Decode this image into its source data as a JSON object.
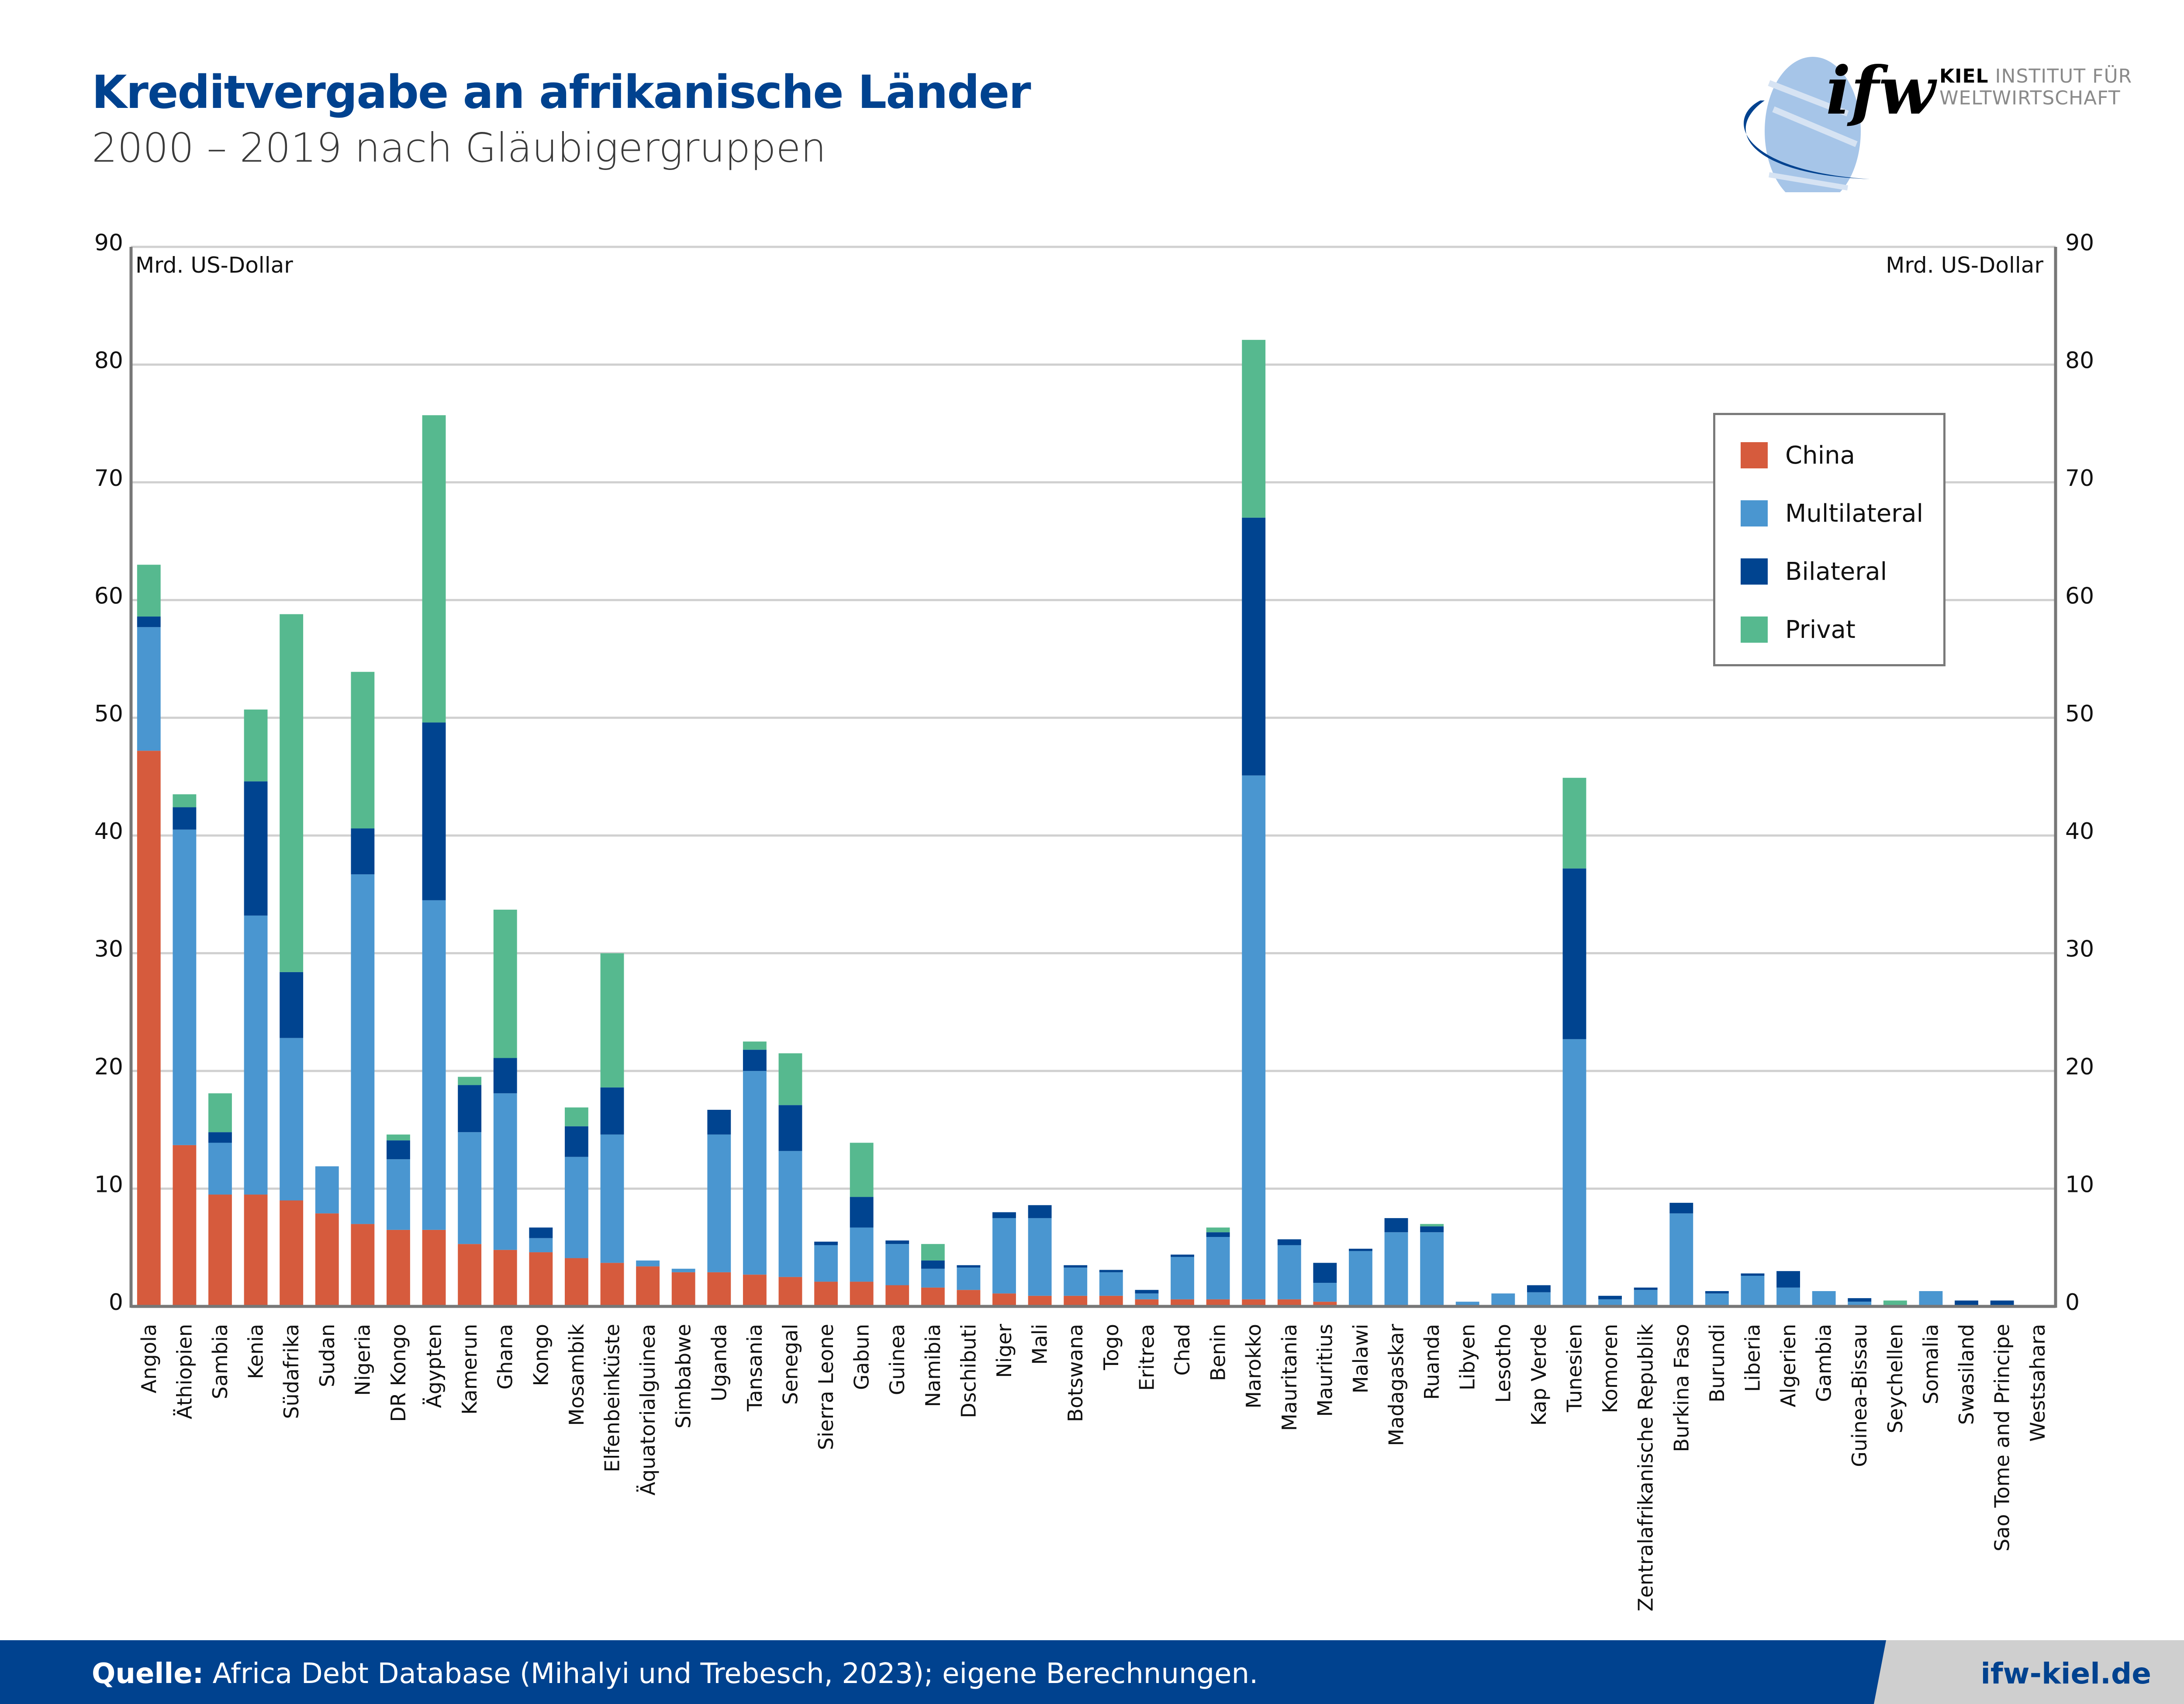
{
  "header": {
    "title": "Kreditvergabe an afrikanische Länder",
    "subtitle": "2000 – 2019 nach Gläubigergruppen"
  },
  "logo": {
    "mark": "ifw",
    "line1_bold": "KIEL",
    "line1_rest": " INSTITUT FÜR",
    "line2": "WELTWIRTSCHAFT"
  },
  "footer": {
    "source_label": "Quelle:",
    "source_text": " Africa Debt Database (Mihalyi und Trebesch, 2023); eigene Berechnungen.",
    "url": "ifw-kiel.de"
  },
  "colors": {
    "China": "#d65b3d",
    "Multilateral": "#4a96d0",
    "Bilateral": "#004490",
    "Privat": "#56b98f",
    "brand": "#00428f"
  },
  "chart_data": {
    "type": "bar",
    "stacked": true,
    "title": "Kreditvergabe an afrikanische Länder",
    "subtitle": "2000 – 2019 nach Gläubigergruppen",
    "ylabel": "Mrd. US-Dollar",
    "ylabel_right": "Mrd. US-Dollar",
    "ylim": [
      0,
      90
    ],
    "yticks": [
      0,
      10,
      20,
      30,
      40,
      50,
      60,
      70,
      80,
      90
    ],
    "grid": true,
    "legend_position": "top-right",
    "categories": [
      "Angola",
      "Äthiopien",
      "Sambia",
      "Kenia",
      "Südafrika",
      "Sudan",
      "Nigeria",
      "DR Kongo",
      "Ägypten",
      "Kamerun",
      "Ghana",
      "Kongo",
      "Mosambik",
      "Elfenbeinküste",
      "Äquatorialguinea",
      "Simbabwe",
      "Uganda",
      "Tansania",
      "Senegal",
      "Sierra Leone",
      "Gabun",
      "Guinea",
      "Namibia",
      "Dschibuti",
      "Niger",
      "Mali",
      "Botswana",
      "Togo",
      "Eritrea",
      "Chad",
      "Benin",
      "Marokko",
      "Mauritania",
      "Mauritius",
      "Malawi",
      "Madagaskar",
      "Ruanda",
      "Libyen",
      "Lesotho",
      "Kap Verde",
      "Tunesien",
      "Komoren",
      "Zentralafrikanische Republik",
      "Burkina Faso",
      "Burundi",
      "Liberia",
      "Algerien",
      "Gambia",
      "Guinea-Bissau",
      "Seychellen",
      "Somalia",
      "Swasiland",
      "Sao Tome and Principe",
      "Westsahara"
    ],
    "series": [
      {
        "name": "China",
        "values": [
          47.2,
          13.7,
          9.5,
          9.5,
          9.0,
          7.9,
          7.0,
          6.5,
          6.5,
          5.3,
          4.8,
          4.6,
          4.1,
          3.7,
          3.4,
          2.9,
          2.9,
          2.7,
          2.5,
          2.1,
          2.1,
          1.8,
          1.6,
          1.4,
          1.1,
          0.9,
          0.9,
          0.9,
          0.6,
          0.6,
          0.6,
          0.6,
          0.6,
          0.4,
          0.1,
          0.1,
          0.1,
          0.1,
          0,
          0,
          0,
          0,
          0,
          0,
          0,
          0,
          0,
          0,
          0,
          0,
          0,
          0,
          0,
          0
        ]
      },
      {
        "name": "Multilateral",
        "values": [
          10.5,
          26.8,
          4.4,
          23.7,
          13.8,
          4.0,
          29.7,
          6.0,
          28.0,
          9.5,
          13.3,
          1.2,
          8.6,
          10.9,
          0.5,
          0.3,
          11.7,
          17.3,
          10.7,
          3.1,
          4.6,
          3.5,
          1.6,
          1.9,
          6.4,
          6.6,
          2.4,
          2.0,
          0.5,
          3.6,
          5.3,
          44.5,
          4.6,
          1.6,
          4.6,
          6.2,
          6.2,
          0.3,
          1.1,
          1.2,
          22.7,
          0.6,
          1.4,
          7.9,
          1.1,
          2.6,
          1.6,
          1.3,
          0.4,
          0.1,
          1.3,
          0.1,
          0.1,
          0
        ]
      },
      {
        "name": "Bilateral",
        "values": [
          0.9,
          1.9,
          0.9,
          11.4,
          5.6,
          0,
          3.9,
          1.6,
          15.1,
          4.0,
          3.0,
          0.9,
          2.6,
          4.0,
          0,
          0,
          2.1,
          1.8,
          3.9,
          0.3,
          2.6,
          0.3,
          0.7,
          0.2,
          0.5,
          1.1,
          0.2,
          0.2,
          0.3,
          0.2,
          0.4,
          21.9,
          0.5,
          1.7,
          0.2,
          1.2,
          0.5,
          0,
          0,
          0.6,
          14.5,
          0.3,
          0.2,
          0.9,
          0.2,
          0.2,
          1.4,
          0,
          0.3,
          0,
          0,
          0.4,
          0.4,
          0
        ]
      },
      {
        "name": "Privat",
        "values": [
          4.4,
          1.1,
          3.3,
          6.1,
          30.4,
          0,
          13.3,
          0.5,
          26.1,
          0.7,
          12.6,
          0,
          1.6,
          11.4,
          0,
          0,
          0,
          0.7,
          4.4,
          0,
          4.6,
          0,
          1.4,
          0,
          0,
          0,
          0,
          0,
          0,
          0,
          0.4,
          15.1,
          0,
          0,
          0,
          0,
          0.2,
          0,
          0,
          0,
          7.7,
          0,
          0,
          0,
          0,
          0,
          0,
          0,
          0,
          0.4,
          0,
          0,
          0,
          0
        ]
      }
    ]
  }
}
